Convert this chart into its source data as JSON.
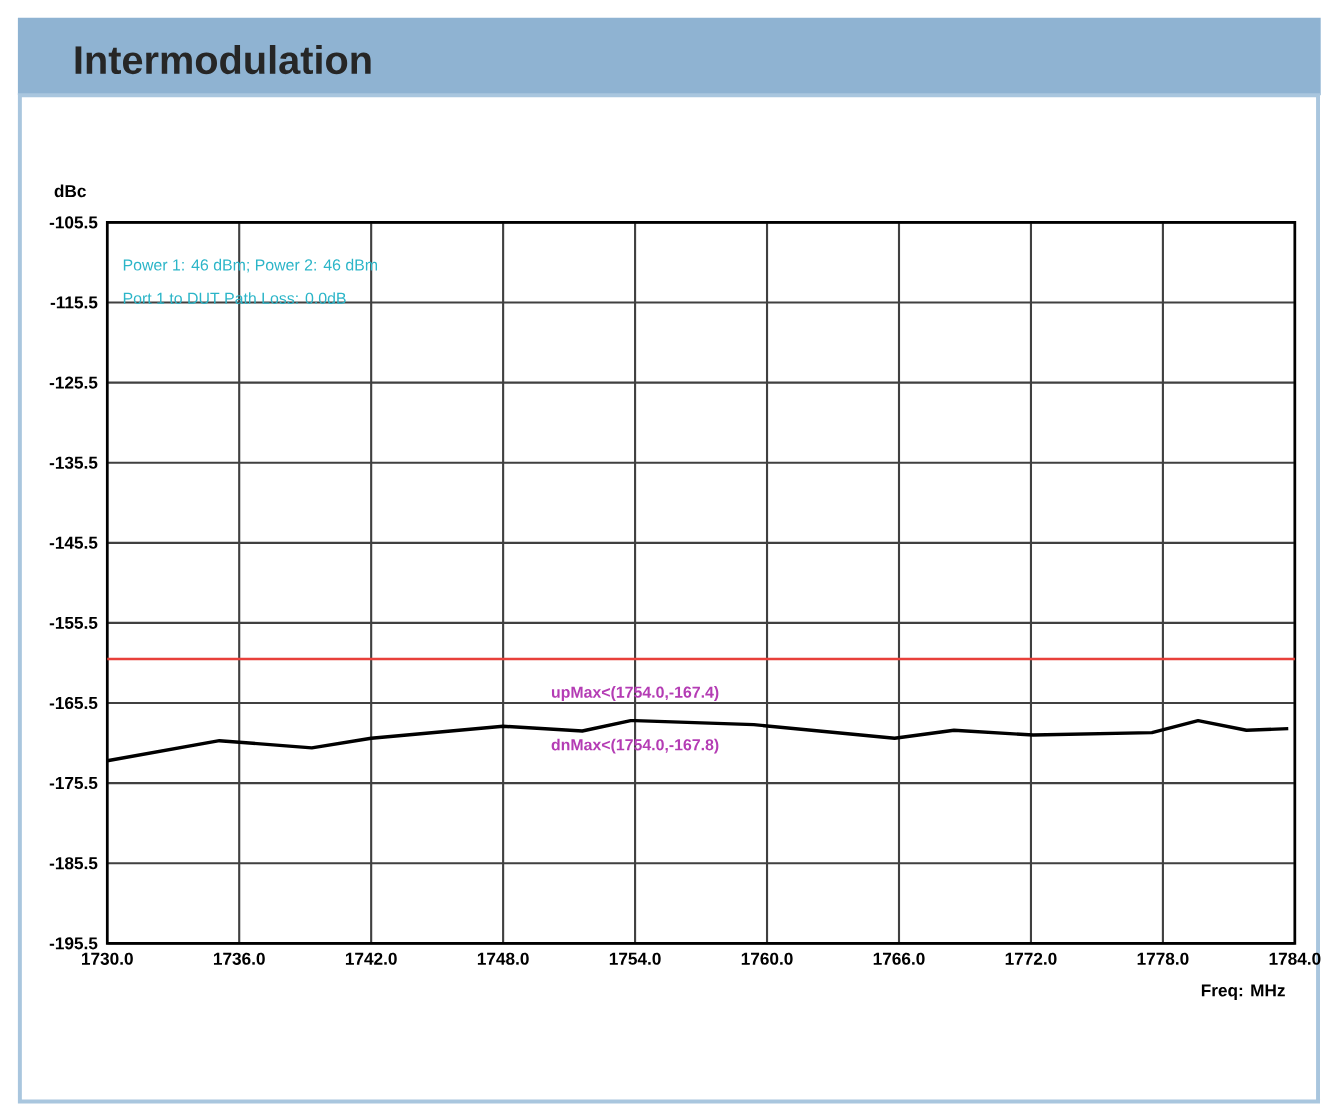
{
  "chart_data": {
    "type": "line",
    "title": "Intermodulation",
    "ylabel": "dBc",
    "xlabel": "Freq: MHz",
    "x": [
      1730,
      1735.1,
      1739.3,
      1742,
      1748,
      1751.6,
      1753.8,
      1754,
      1759.4,
      1765.8,
      1768.5,
      1772.1,
      1777.5,
      1779.6,
      1781.8,
      1783.7
    ],
    "series": [
      {
        "color": "#000000",
        "values": [
          -172.7,
          -170.2,
          -171.1,
          -169.9,
          -168.4,
          -169,
          -167.7,
          -167.7,
          -168.2,
          -169.9,
          -168.9,
          -169.5,
          -169.2,
          -167.7,
          -168.9,
          -168.7
        ]
      }
    ],
    "xlim": [
      1730,
      1784
    ],
    "ylim": [
      -195.5,
      -105.5
    ],
    "xticks": [
      {
        "value": 1730,
        "label": "1730.0"
      },
      {
        "value": 1736,
        "label": "1736.0"
      },
      {
        "value": 1742,
        "label": "1742.0"
      },
      {
        "value": 1748,
        "label": "1748.0"
      },
      {
        "value": 1754,
        "label": "1754.0"
      },
      {
        "value": 1760,
        "label": "1760.0"
      },
      {
        "value": 1766,
        "label": "1766.0"
      },
      {
        "value": 1772,
        "label": "1772.0"
      },
      {
        "value": 1778,
        "label": "1778.0"
      },
      {
        "value": 1784,
        "label": "1784.0"
      }
    ],
    "yticks": [
      -195.5,
      -185.5,
      -175.5,
      -165.5,
      -155.5,
      -145.5,
      -135.5,
      -125.5,
      -115.5,
      -105.5
    ],
    "grid": true,
    "marker": "none",
    "line_style": "solid",
    "ref_lines": [
      {
        "axis": "y",
        "value": -160,
        "color": "#e8403a"
      }
    ],
    "annotations": [
      "Power 1: 46 dBm; Power 2: 46 dBm",
      "Port 1 to DUT Path Loss: 0.0dB",
      {
        "text": "upMax<(1754.0,-167.4)",
        "x": 1754,
        "y": -167.4
      },
      {
        "text": "dnMax<(1754.0,-167.8)",
        "x": 1754,
        "y": -167.8
      }
    ]
  }
}
